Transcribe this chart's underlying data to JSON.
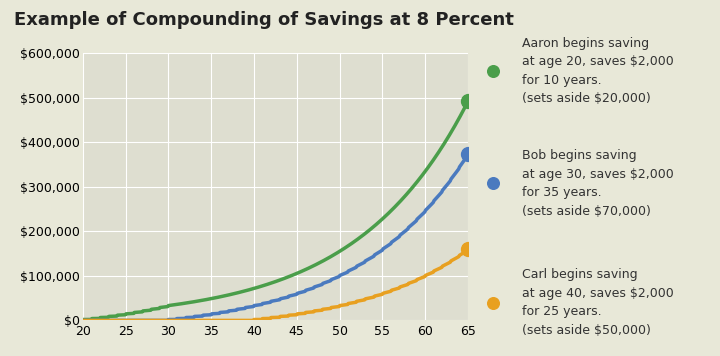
{
  "title": "Example of Compounding of Savings at 8 Percent",
  "bg_color": "#e8e8d8",
  "plot_bg_color": "#deded0",
  "rate": 0.08,
  "x_min": 20,
  "x_max": 65,
  "y_min": 0,
  "y_max": 600000,
  "x_ticks": [
    20,
    25,
    30,
    35,
    40,
    45,
    50,
    55,
    60,
    65
  ],
  "y_ticks": [
    0,
    100000,
    200000,
    300000,
    400000,
    500000,
    600000
  ],
  "aaron": {
    "start_age": 20,
    "save_per_year": 2000,
    "stop_age": 30,
    "color": "#4a9e4a",
    "label": "Aaron begins saving\nat age 20, saves $2,000\nfor 10 years.\n(sets aside $20,000)"
  },
  "bob": {
    "start_age": 30,
    "save_per_year": 2000,
    "stop_age": 65,
    "color": "#4a7abf",
    "label": "Bob begins saving\nat age 30, saves $2,000\nfor 35 years.\n(sets aside $70,000)"
  },
  "carl": {
    "start_age": 40,
    "save_per_year": 2000,
    "stop_age": 65,
    "color": "#e8a020",
    "label": "Carl begins saving\nat age 40, saves $2,000\nfor 25 years.\n(sets aside $50,000)"
  },
  "legend_dot_size": 100,
  "line_width": 2.5,
  "title_fontsize": 13,
  "tick_fontsize": 9,
  "legend_fontsize": 9
}
